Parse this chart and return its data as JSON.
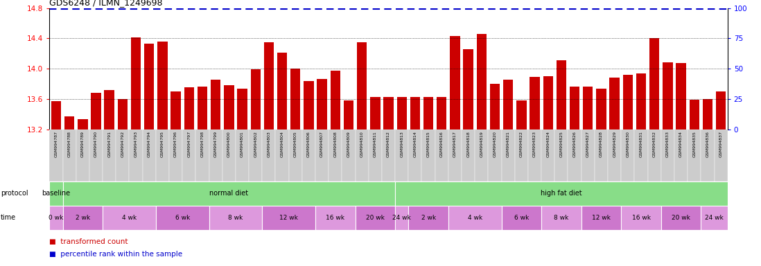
{
  "title": "GDS6248 / ILMN_1249698",
  "samples": [
    "GSM994787",
    "GSM994788",
    "GSM994789",
    "GSM994790",
    "GSM994791",
    "GSM994792",
    "GSM994793",
    "GSM994794",
    "GSM994795",
    "GSM994796",
    "GSM994797",
    "GSM994798",
    "GSM994799",
    "GSM994800",
    "GSM994801",
    "GSM994802",
    "GSM994803",
    "GSM994804",
    "GSM994805",
    "GSM994806",
    "GSM994807",
    "GSM994808",
    "GSM994809",
    "GSM994810",
    "GSM994811",
    "GSM994812",
    "GSM994813",
    "GSM994814",
    "GSM994815",
    "GSM994816",
    "GSM994817",
    "GSM994818",
    "GSM994819",
    "GSM994820",
    "GSM994821",
    "GSM994822",
    "GSM994823",
    "GSM994824",
    "GSM994825",
    "GSM994826",
    "GSM994827",
    "GSM994828",
    "GSM994829",
    "GSM994830",
    "GSM994831",
    "GSM994832",
    "GSM994833",
    "GSM994834",
    "GSM994835",
    "GSM994836",
    "GSM994837"
  ],
  "values": [
    13.57,
    13.37,
    13.33,
    13.68,
    13.72,
    13.6,
    14.41,
    14.33,
    14.36,
    13.7,
    13.75,
    13.76,
    13.85,
    13.78,
    13.74,
    13.99,
    14.35,
    14.21,
    14.0,
    13.84,
    13.86,
    13.97,
    13.58,
    14.35,
    13.63,
    13.63,
    13.63,
    13.63,
    13.63,
    13.63,
    14.43,
    14.26,
    14.46,
    13.8,
    13.85,
    13.58,
    13.89,
    13.9,
    14.11,
    13.76,
    13.76,
    13.74,
    13.88,
    13.92,
    13.94,
    14.4,
    14.08,
    14.07,
    13.59,
    13.6,
    13.7
  ],
  "bar_color": "#cc0000",
  "percentile_color": "#0000cc",
  "percentile_value": 14.79,
  "ylim_left": [
    13.2,
    14.8
  ],
  "ylim_right": [
    0,
    100
  ],
  "yticks_left": [
    13.2,
    13.6,
    14.0,
    14.4,
    14.8
  ],
  "yticks_right": [
    0,
    25,
    50,
    75,
    100
  ],
  "gridlines": [
    13.6,
    14.0,
    14.4
  ],
  "protocol_labels": [
    {
      "label": "baseline",
      "start": 0,
      "end": 1
    },
    {
      "label": "normal diet",
      "start": 1,
      "end": 26
    },
    {
      "label": "high fat diet",
      "start": 26,
      "end": 51
    }
  ],
  "time_groups": [
    {
      "label": "0 wk",
      "start": 0,
      "end": 1
    },
    {
      "label": "2 wk",
      "start": 1,
      "end": 4
    },
    {
      "label": "4 wk",
      "start": 4,
      "end": 8
    },
    {
      "label": "6 wk",
      "start": 8,
      "end": 12
    },
    {
      "label": "8 wk",
      "start": 12,
      "end": 16
    },
    {
      "label": "12 wk",
      "start": 16,
      "end": 20
    },
    {
      "label": "16 wk",
      "start": 20,
      "end": 23
    },
    {
      "label": "20 wk",
      "start": 23,
      "end": 26
    },
    {
      "label": "24 wk",
      "start": 26,
      "end": 27
    },
    {
      "label": "2 wk",
      "start": 27,
      "end": 30
    },
    {
      "label": "4 wk",
      "start": 30,
      "end": 34
    },
    {
      "label": "6 wk",
      "start": 34,
      "end": 37
    },
    {
      "label": "8 wk",
      "start": 37,
      "end": 40
    },
    {
      "label": "12 wk",
      "start": 40,
      "end": 43
    },
    {
      "label": "16 wk",
      "start": 43,
      "end": 46
    },
    {
      "label": "20 wk",
      "start": 46,
      "end": 49
    },
    {
      "label": "24 wk",
      "start": 49,
      "end": 51
    }
  ],
  "time_alt_colors": [
    "#ddaadd",
    "#cc77cc"
  ],
  "green_color": "#88dd88",
  "gray_tick_bg": "#d0d0d0",
  "tick_bg_color": "#cccccc"
}
